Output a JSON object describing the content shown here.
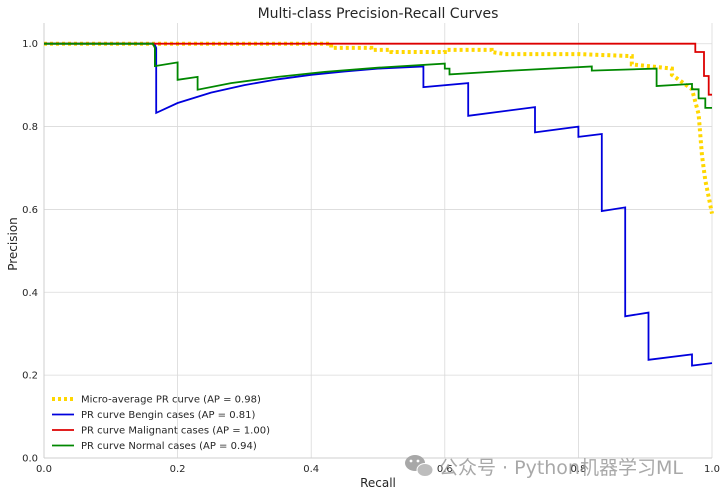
{
  "chart_data": {
    "type": "line",
    "title": "Multi-class Precision-Recall Curves",
    "xlabel": "Recall",
    "ylabel": "Precision",
    "xlim": [
      0.0,
      1.0
    ],
    "ylim": [
      0.0,
      1.05
    ],
    "xticks": [
      0.0,
      0.2,
      0.4,
      0.6,
      0.8,
      1.0
    ],
    "yticks": [
      0.0,
      0.2,
      0.4,
      0.6,
      0.8,
      1.0
    ],
    "xtick_labels": [
      "0.0",
      "0.2",
      "0.4",
      "0.6",
      "0.8",
      "1.0"
    ],
    "ytick_labels": [
      "0.0",
      "0.2",
      "0.4",
      "0.6",
      "0.8",
      "1.0"
    ],
    "grid": true,
    "legend_position": "lower-left",
    "series": [
      {
        "name": "Micro-average PR curve (AP = 0.98)",
        "color": "#ffd700",
        "style": "dotted",
        "x": [
          0.0,
          0.43,
          0.43,
          0.49,
          0.49,
          0.52,
          0.52,
          0.6,
          0.6,
          0.67,
          0.67,
          0.69,
          0.69,
          0.8,
          0.8,
          0.88,
          0.88,
          0.94,
          0.94,
          0.97,
          0.98,
          0.985,
          0.99,
          0.995,
          1.0
        ],
        "y": [
          1.0,
          1.0,
          0.99,
          0.99,
          0.985,
          0.985,
          0.98,
          0.98,
          0.985,
          0.985,
          0.98,
          0.975,
          0.975,
          0.975,
          0.975,
          0.97,
          0.95,
          0.94,
          0.925,
          0.89,
          0.83,
          0.73,
          0.67,
          0.63,
          0.59
        ]
      },
      {
        "name": "PR curve Bengin cases (AP = 0.81)",
        "color": "#0000dd",
        "style": "solid",
        "x": [
          0.0,
          0.165,
          0.168,
          0.168,
          0.2,
          0.25,
          0.3,
          0.35,
          0.4,
          0.45,
          0.5,
          0.568,
          0.568,
          0.635,
          0.635,
          0.735,
          0.735,
          0.8,
          0.8,
          0.835,
          0.835,
          0.87,
          0.87,
          0.905,
          0.905,
          0.97,
          0.97,
          1.0
        ],
        "y": [
          1.0,
          1.0,
          0.99,
          0.833,
          0.857,
          0.882,
          0.9,
          0.914,
          0.925,
          0.933,
          0.94,
          0.945,
          0.895,
          0.905,
          0.826,
          0.847,
          0.786,
          0.8,
          0.775,
          0.782,
          0.596,
          0.605,
          0.342,
          0.351,
          0.237,
          0.25,
          0.223,
          0.229
        ]
      },
      {
        "name": "PR curve Malignant cases (AP = 1.00)",
        "color": "#dd0000",
        "style": "solid",
        "x": [
          0.0,
          0.975,
          0.975,
          0.988,
          0.988,
          0.995,
          0.995,
          1.0
        ],
        "y": [
          1.0,
          1.0,
          0.98,
          0.98,
          0.922,
          0.922,
          0.877,
          0.877
        ]
      },
      {
        "name": "PR curve Normal cases (AP = 0.94)",
        "color": "#008800",
        "style": "solid",
        "x": [
          0.0,
          0.163,
          0.166,
          0.166,
          0.2,
          0.2,
          0.23,
          0.23,
          0.28,
          0.35,
          0.42,
          0.5,
          0.6,
          0.6,
          0.607,
          0.607,
          0.7,
          0.82,
          0.82,
          0.917,
          0.917,
          0.97,
          0.97,
          0.98,
          0.98,
          0.99,
          0.99,
          1.0
        ],
        "y": [
          1.0,
          1.0,
          0.99,
          0.946,
          0.955,
          0.913,
          0.92,
          0.889,
          0.905,
          0.92,
          0.932,
          0.942,
          0.952,
          0.94,
          0.94,
          0.926,
          0.935,
          0.945,
          0.935,
          0.94,
          0.898,
          0.903,
          0.89,
          0.89,
          0.868,
          0.868,
          0.845,
          0.845
        ]
      }
    ]
  },
  "watermark": {
    "text": "公众号 · Python机器学习ML",
    "icon": "wechat-icon"
  }
}
